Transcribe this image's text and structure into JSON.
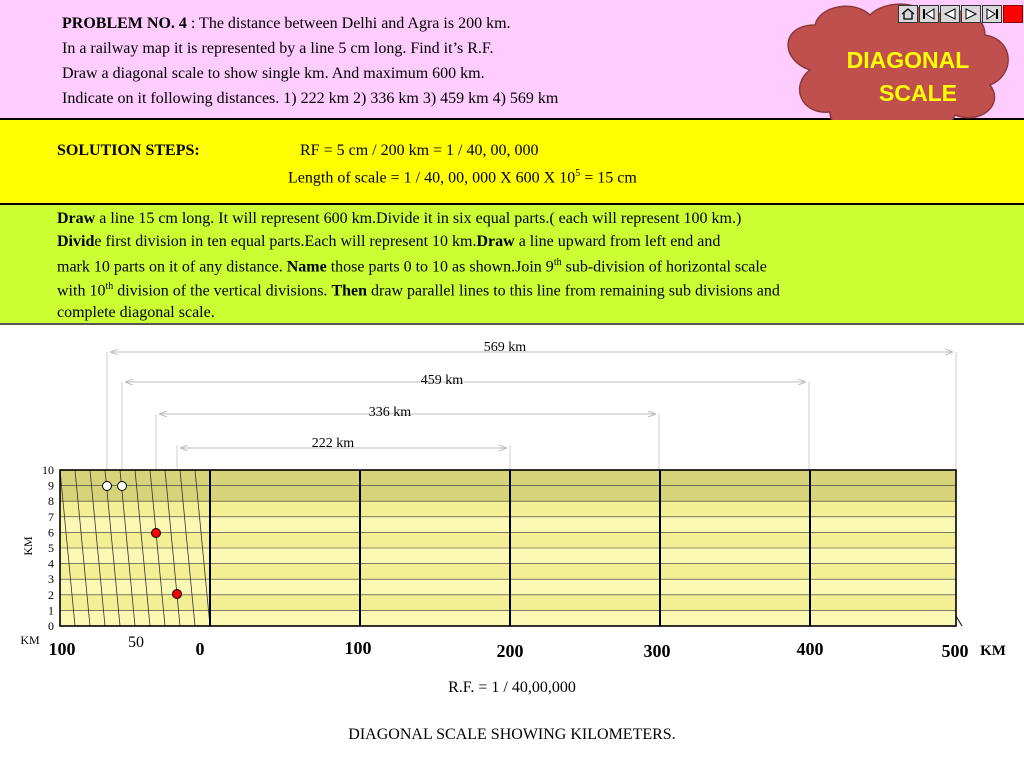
{
  "problem": {
    "title": "PROBLEM NO. 4",
    "line1_rest": " : The distance between Delhi and Agra is 200 km.",
    "line2": "In a railway map it is represented by a line 5 cm long. Find it’s R.F.",
    "line3": "Draw a diagonal scale to show single km.  And maximum 600 km.",
    "line4": "Indicate on it following  distances. 1) 222 km  2) 336 km  3) 459 km  4) 569 km"
  },
  "badge": {
    "line1": "DIAGONAL",
    "line2": "SCALE"
  },
  "nav": {
    "home": "home-icon",
    "first": "first-icon",
    "prev": "prev-icon",
    "next": "next-icon",
    "last": "last-icon",
    "stop": "stop-icon"
  },
  "steps": {
    "heading": "SOLUTION STEPS:",
    "rf": "RF = 5 cm / 200 km = 1 / 40, 00, 000",
    "length_pre": "Length of scale = 1 / 40, 00, 000  X  600 X  10",
    "length_exp": "5",
    "length_post": "  = 15 cm"
  },
  "description": {
    "l1_b": "Draw",
    "l1": " a line 15 cm long. It will represent 600 km.Divide it in six equal parts.( each will represent 100 km.)",
    "l2_b1": "Divid",
    "l2_a": "e first division in ten equal parts.Each will represent 10 km.",
    "l2_b2": "Draw",
    "l2_b": " a line upward from left end and",
    "l3_a": "mark 10 parts on it of any distance.  ",
    "l3_b": "Name",
    "l3_c": " those parts  0 to 10 as shown.Join  9",
    "l3_sup": "th",
    "l3_d": " sub-division of horizontal scale",
    "l4_a": "with 10",
    "l4_sup": "th",
    "l4_b": " division of the vertical divisions. ",
    "l4_c": "Then",
    "l4_d": " draw parallel lines to this line from remaining sub divisions and",
    "l5": "complete diagonal scale."
  },
  "dimensions": [
    "569 km",
    "459 km",
    "336 km",
    "222 km"
  ],
  "vertical_labels": [
    "10",
    "9",
    "8",
    "7",
    "6",
    "5",
    "4",
    "3",
    "2",
    "1",
    "0"
  ],
  "vertical_unit": "KM",
  "horizontal_unit_left": "KM",
  "horizontal_unit_right": "KM",
  "main_labels": [
    "100",
    "0",
    "100",
    "200",
    "300",
    "400",
    "500"
  ],
  "sub_label": "50",
  "rf_caption": "R.F. = 1 / 40,00,000",
  "bottom_caption": "DIAGONAL SCALE SHOWING KILOMETERS.",
  "colors": {
    "problem_bg": "#ffccff",
    "steps_bg": "#ffff00",
    "desc_bg": "#ccff33",
    "cloud": "#c0504d",
    "badge_text": "#ffff00"
  }
}
